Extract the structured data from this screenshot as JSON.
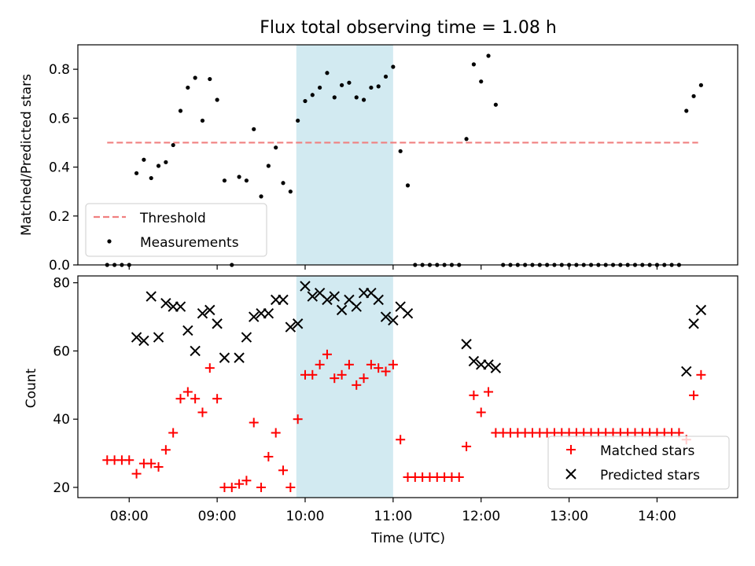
{
  "chart_data": [
    {
      "type": "scatter",
      "title": "Flux total observing time = 1.08 h",
      "xlabel": "",
      "ylabel": "Matched/Predicted stars",
      "ylim": [
        0,
        0.9
      ],
      "yticks": [
        0.0,
        0.2,
        0.4,
        0.6,
        0.8
      ],
      "ytick_labels": [
        "0.0",
        "0.2",
        "0.4",
        "0.6",
        "0.8"
      ],
      "legend_position": "lower-left",
      "threshold": {
        "name": "Threshold",
        "value": 0.5,
        "x_start": "07:45",
        "x_end": "14:28",
        "color": "#f08080"
      },
      "highlight_span": {
        "x_start": "09:54",
        "x_end": "11:00",
        "color": "#add8e6"
      },
      "series": [
        {
          "name": "Measurements",
          "color": "#000000",
          "points": [
            [
              "07:45",
              0.0
            ],
            [
              "07:50",
              0.0
            ],
            [
              "07:55",
              0.0
            ],
            [
              "08:00",
              0.0
            ],
            [
              "08:05",
              0.375
            ],
            [
              "08:10",
              0.43
            ],
            [
              "08:15",
              0.355
            ],
            [
              "08:20",
              0.405
            ],
            [
              "08:25",
              0.42
            ],
            [
              "08:30",
              0.49
            ],
            [
              "08:35",
              0.63
            ],
            [
              "08:40",
              0.725
            ],
            [
              "08:45",
              0.765
            ],
            [
              "08:50",
              0.59
            ],
            [
              "08:55",
              0.76
            ],
            [
              "09:00",
              0.675
            ],
            [
              "09:05",
              0.345
            ],
            [
              "09:10",
              0.0
            ],
            [
              "09:15",
              0.36
            ],
            [
              "09:20",
              0.345
            ],
            [
              "09:25",
              0.555
            ],
            [
              "09:30",
              0.28
            ],
            [
              "09:35",
              0.405
            ],
            [
              "09:40",
              0.48
            ],
            [
              "09:45",
              0.335
            ],
            [
              "09:50",
              0.3
            ],
            [
              "09:55",
              0.59
            ],
            [
              "10:00",
              0.67
            ],
            [
              "10:05",
              0.695
            ],
            [
              "10:10",
              0.725
            ],
            [
              "10:15",
              0.785
            ],
            [
              "10:20",
              0.685
            ],
            [
              "10:25",
              0.735
            ],
            [
              "10:30",
              0.745
            ],
            [
              "10:35",
              0.685
            ],
            [
              "10:40",
              0.675
            ],
            [
              "10:45",
              0.725
            ],
            [
              "10:50",
              0.73
            ],
            [
              "10:55",
              0.77
            ],
            [
              "11:00",
              0.81
            ],
            [
              "11:05",
              0.465
            ],
            [
              "11:10",
              0.325
            ],
            [
              "11:15",
              0.0
            ],
            [
              "11:20",
              0.0
            ],
            [
              "11:25",
              0.0
            ],
            [
              "11:30",
              0.0
            ],
            [
              "11:35",
              0.0
            ],
            [
              "11:40",
              0.0
            ],
            [
              "11:45",
              0.0
            ],
            [
              "11:50",
              0.515
            ],
            [
              "11:55",
              0.82
            ],
            [
              "12:00",
              0.75
            ],
            [
              "12:05",
              0.855
            ],
            [
              "12:10",
              0.655
            ],
            [
              "12:15",
              0.0
            ],
            [
              "12:20",
              0.0
            ],
            [
              "12:25",
              0.0
            ],
            [
              "12:30",
              0.0
            ],
            [
              "12:35",
              0.0
            ],
            [
              "12:40",
              0.0
            ],
            [
              "12:45",
              0.0
            ],
            [
              "12:50",
              0.0
            ],
            [
              "12:55",
              0.0
            ],
            [
              "13:00",
              0.0
            ],
            [
              "13:05",
              0.0
            ],
            [
              "13:10",
              0.0
            ],
            [
              "13:15",
              0.0
            ],
            [
              "13:20",
              0.0
            ],
            [
              "13:25",
              0.0
            ],
            [
              "13:30",
              0.0
            ],
            [
              "13:35",
              0.0
            ],
            [
              "13:40",
              0.0
            ],
            [
              "13:45",
              0.0
            ],
            [
              "13:50",
              0.0
            ],
            [
              "13:55",
              0.0
            ],
            [
              "14:00",
              0.0
            ],
            [
              "14:05",
              0.0
            ],
            [
              "14:10",
              0.0
            ],
            [
              "14:15",
              0.0
            ],
            [
              "14:20",
              0.63
            ],
            [
              "14:25",
              0.69
            ],
            [
              "14:30",
              0.735
            ]
          ]
        }
      ]
    },
    {
      "type": "scatter",
      "title": "",
      "xlabel": "Time (UTC)",
      "ylabel": "Count",
      "ylim": [
        17,
        82
      ],
      "yticks": [
        20,
        40,
        60,
        80
      ],
      "ytick_labels": [
        "20",
        "40",
        "60",
        "80"
      ],
      "xlim": [
        "07:25",
        "14:55"
      ],
      "xticks": [
        "08:00",
        "09:00",
        "10:00",
        "11:00",
        "12:00",
        "13:00",
        "14:00"
      ],
      "xtick_labels": [
        "08:00",
        "09:00",
        "10:00",
        "11:00",
        "12:00",
        "13:00",
        "14:00"
      ],
      "legend_position": "lower-right",
      "highlight_span": {
        "x_start": "09:54",
        "x_end": "11:00",
        "color": "#add8e6"
      },
      "series": [
        {
          "name": "Matched stars",
          "marker": "plus",
          "color": "#ff0000",
          "points": [
            [
              "07:45",
              28
            ],
            [
              "07:50",
              28
            ],
            [
              "07:55",
              28
            ],
            [
              "08:00",
              28
            ],
            [
              "08:05",
              24
            ],
            [
              "08:10",
              27
            ],
            [
              "08:15",
              27
            ],
            [
              "08:20",
              26
            ],
            [
              "08:25",
              31
            ],
            [
              "08:30",
              36
            ],
            [
              "08:35",
              46
            ],
            [
              "08:40",
              48
            ],
            [
              "08:45",
              46
            ],
            [
              "08:50",
              42
            ],
            [
              "08:55",
              55
            ],
            [
              "09:00",
              46
            ],
            [
              "09:05",
              20
            ],
            [
              "09:10",
              20
            ],
            [
              "09:15",
              21
            ],
            [
              "09:20",
              22
            ],
            [
              "09:25",
              39
            ],
            [
              "09:30",
              20
            ],
            [
              "09:35",
              29
            ],
            [
              "09:40",
              36
            ],
            [
              "09:45",
              25
            ],
            [
              "09:50",
              20
            ],
            [
              "09:55",
              40
            ],
            [
              "10:00",
              53
            ],
            [
              "10:05",
              53
            ],
            [
              "10:10",
              56
            ],
            [
              "10:15",
              59
            ],
            [
              "10:20",
              52
            ],
            [
              "10:25",
              53
            ],
            [
              "10:30",
              56
            ],
            [
              "10:35",
              50
            ],
            [
              "10:40",
              52
            ],
            [
              "10:45",
              56
            ],
            [
              "10:50",
              55
            ],
            [
              "10:55",
              54
            ],
            [
              "11:00",
              56
            ],
            [
              "11:05",
              34
            ],
            [
              "11:10",
              23
            ],
            [
              "11:15",
              23
            ],
            [
              "11:20",
              23
            ],
            [
              "11:25",
              23
            ],
            [
              "11:30",
              23
            ],
            [
              "11:35",
              23
            ],
            [
              "11:40",
              23
            ],
            [
              "11:45",
              23
            ],
            [
              "11:50",
              32
            ],
            [
              "11:55",
              47
            ],
            [
              "12:00",
              42
            ],
            [
              "12:05",
              48
            ],
            [
              "12:10",
              36
            ],
            [
              "12:15",
              36
            ],
            [
              "12:20",
              36
            ],
            [
              "12:25",
              36
            ],
            [
              "12:30",
              36
            ],
            [
              "12:35",
              36
            ],
            [
              "12:40",
              36
            ],
            [
              "12:45",
              36
            ],
            [
              "12:50",
              36
            ],
            [
              "12:55",
              36
            ],
            [
              "13:00",
              36
            ],
            [
              "13:05",
              36
            ],
            [
              "13:10",
              36
            ],
            [
              "13:15",
              36
            ],
            [
              "13:20",
              36
            ],
            [
              "13:25",
              36
            ],
            [
              "13:30",
              36
            ],
            [
              "13:35",
              36
            ],
            [
              "13:40",
              36
            ],
            [
              "13:45",
              36
            ],
            [
              "13:50",
              36
            ],
            [
              "13:55",
              36
            ],
            [
              "14:00",
              36
            ],
            [
              "14:05",
              36
            ],
            [
              "14:10",
              36
            ],
            [
              "14:15",
              36
            ],
            [
              "14:20",
              34
            ],
            [
              "14:25",
              47
            ],
            [
              "14:30",
              53
            ]
          ]
        },
        {
          "name": "Predicted stars",
          "marker": "x",
          "color": "#000000",
          "points": [
            [
              "08:05",
              64
            ],
            [
              "08:10",
              63
            ],
            [
              "08:15",
              76
            ],
            [
              "08:20",
              64
            ],
            [
              "08:25",
              74
            ],
            [
              "08:30",
              73
            ],
            [
              "08:35",
              73
            ],
            [
              "08:40",
              66
            ],
            [
              "08:45",
              60
            ],
            [
              "08:50",
              71
            ],
            [
              "08:55",
              72
            ],
            [
              "09:00",
              68
            ],
            [
              "09:05",
              58
            ],
            [
              "09:15",
              58
            ],
            [
              "09:20",
              64
            ],
            [
              "09:25",
              70
            ],
            [
              "09:30",
              71
            ],
            [
              "09:35",
              71
            ],
            [
              "09:40",
              75
            ],
            [
              "09:45",
              75
            ],
            [
              "09:50",
              67
            ],
            [
              "09:55",
              68
            ],
            [
              "10:00",
              79
            ],
            [
              "10:05",
              76
            ],
            [
              "10:10",
              77
            ],
            [
              "10:15",
              75
            ],
            [
              "10:20",
              76
            ],
            [
              "10:25",
              72
            ],
            [
              "10:30",
              75
            ],
            [
              "10:35",
              73
            ],
            [
              "10:40",
              77
            ],
            [
              "10:45",
              77
            ],
            [
              "10:50",
              75
            ],
            [
              "10:55",
              70
            ],
            [
              "11:00",
              69
            ],
            [
              "11:05",
              73
            ],
            [
              "11:10",
              71
            ],
            [
              "11:50",
              62
            ],
            [
              "11:55",
              57
            ],
            [
              "12:00",
              56
            ],
            [
              "12:05",
              56
            ],
            [
              "12:10",
              55
            ],
            [
              "14:20",
              54
            ],
            [
              "14:25",
              68
            ],
            [
              "14:30",
              72
            ]
          ]
        }
      ]
    }
  ]
}
